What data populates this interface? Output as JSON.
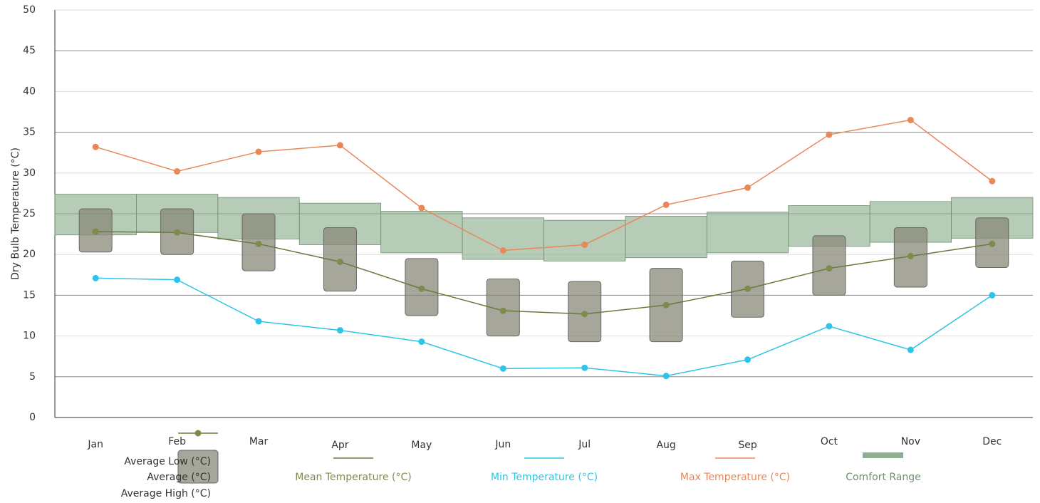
{
  "chart_data": {
    "type": "line",
    "y_label": "Dry Bulb Temperature (°C)",
    "categories": [
      "Jan",
      "Feb",
      "Mar",
      "Apr",
      "May",
      "Jun",
      "Jul",
      "Aug",
      "Sep",
      "Oct",
      "Nov",
      "Dec"
    ],
    "ylim": [
      0,
      50
    ],
    "yticks": [
      0,
      5,
      10,
      15,
      20,
      25,
      30,
      35,
      40,
      45,
      50
    ],
    "grid": true,
    "ranges": [
      {
        "name": "Comfort Range",
        "color": "#8fb08f",
        "low": [
          22.4,
          22.7,
          21.9,
          21.2,
          20.2,
          19.4,
          19.2,
          19.6,
          20.2,
          21.0,
          21.5,
          22.0
        ],
        "high": [
          27.4,
          27.4,
          27.0,
          26.3,
          25.3,
          24.5,
          24.2,
          24.7,
          25.2,
          26.0,
          26.5,
          27.0
        ]
      }
    ],
    "boxes": {
      "name": "Average (°C)",
      "low_name": "Average Low (°C)",
      "high_name": "Average High (°C)",
      "color": "#8a8878",
      "low": [
        20.3,
        20.0,
        18.0,
        15.5,
        12.5,
        10.0,
        9.3,
        9.3,
        12.3,
        15.0,
        16.0,
        18.4
      ],
      "high": [
        25.6,
        25.6,
        25.0,
        23.3,
        19.5,
        17.0,
        16.7,
        18.3,
        19.2,
        22.3,
        23.3,
        24.5
      ]
    },
    "series": [
      {
        "name": "Mean Temperature (°C)",
        "color": "#6b7a3a",
        "values": [
          22.8,
          22.7,
          21.3,
          19.1,
          15.8,
          13.1,
          12.7,
          13.8,
          15.8,
          18.3,
          19.8,
          21.3
        ]
      },
      {
        "name": "Min Temperature (°C)",
        "color": "#2ec4e8",
        "values": [
          17.1,
          16.9,
          11.8,
          10.7,
          9.3,
          6.0,
          6.1,
          5.1,
          7.1,
          11.2,
          8.3,
          15.0
        ]
      },
      {
        "name": "Max Temperature (°C)",
        "color": "#e8875a",
        "values": [
          33.2,
          30.2,
          32.6,
          33.4,
          25.7,
          20.5,
          21.2,
          26.1,
          28.2,
          34.7,
          36.5,
          29.0
        ]
      }
    ]
  }
}
